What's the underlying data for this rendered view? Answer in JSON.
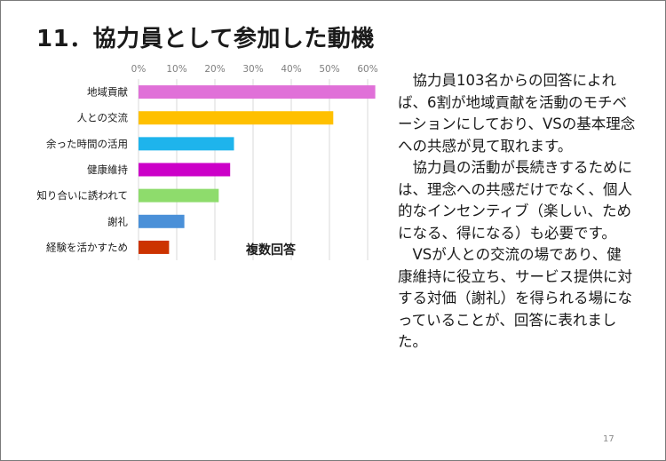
{
  "slide": {
    "title": "11．協力員として参加した動機",
    "paragraphs": [
      "協力員103名からの回答によれば、6割が地域貢献を活動のモチベーションにしており、VSの基本理念への共感が見て取れます。",
      "協力員の活動が長続きするためには、理念への共感だけでなく、個人的なインセンティブ（楽しい、ためになる、得になる）も必要です。",
      "VSが人との交流の場であり、健康維持に役立ち、サービス提供に対する対価（謝礼）を得られる場になっていることが、回答に表れました。"
    ],
    "page_number": "17"
  },
  "chart_data": {
    "type": "bar",
    "orientation": "horizontal",
    "categories": [
      "地域貢献",
      "人との交流",
      "余った時間の活用",
      "健康維持",
      "知り合いに誘われて",
      "謝礼",
      "経験を活かすため"
    ],
    "values": [
      62,
      51,
      25,
      24,
      21,
      12,
      8
    ],
    "colors": [
      "#e070d8",
      "#ffc000",
      "#1eb4ec",
      "#cc00c8",
      "#8edc6c",
      "#4a90d8",
      "#cc3300"
    ],
    "xlim": [
      0,
      60
    ],
    "ticks": [
      "0%",
      "10%",
      "20%",
      "30%",
      "40%",
      "50%",
      "60%"
    ],
    "tick_values": [
      0,
      10,
      20,
      30,
      40,
      50,
      60
    ],
    "annotation": "複数回答",
    "grid": true
  }
}
